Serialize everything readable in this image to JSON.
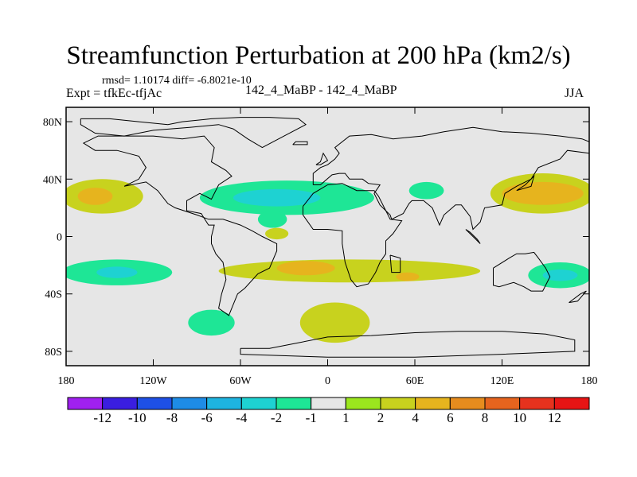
{
  "chart_data": {
    "type": "heatmap",
    "title": "Streamfunction Perturbation at 200 hPa (km2/s)",
    "stats_text": "rmsd= 1.10174 diff= -6.8021e-10",
    "left_label": "Expt = tfkEc-tfjAc",
    "center_label": "142_4_MaBP - 142_4_MaBP",
    "right_label": "JJA",
    "x_ticks": [
      {
        "value": -180,
        "label": "180"
      },
      {
        "value": -120,
        "label": "120W"
      },
      {
        "value": -60,
        "label": "60W"
      },
      {
        "value": 0,
        "label": "0"
      },
      {
        "value": 60,
        "label": "60E"
      },
      {
        "value": 120,
        "label": "120E"
      },
      {
        "value": 180,
        "label": "180"
      }
    ],
    "y_ticks": [
      {
        "value": 80,
        "label": "80N"
      },
      {
        "value": 40,
        "label": "40N"
      },
      {
        "value": 0,
        "label": "0"
      },
      {
        "value": -40,
        "label": "40S"
      },
      {
        "value": -80,
        "label": "80S"
      }
    ],
    "xlim": [
      -180,
      180
    ],
    "ylim": [
      -90,
      90
    ],
    "colorbar": {
      "labels": [
        "-12",
        "-10",
        "-8",
        "-6",
        "-4",
        "-2",
        "-1",
        "1",
        "2",
        "4",
        "6",
        "8",
        "10",
        "12"
      ],
      "colors": [
        "#a020f0",
        "#3a1ee0",
        "#1e50e6",
        "#1e8ce6",
        "#1eb4e0",
        "#1ed2d2",
        "#1ee696",
        "#e6e6e6",
        "#9be61e",
        "#c8d21e",
        "#e6b41e",
        "#e68c1e",
        "#e6641e",
        "#e6321e",
        "#e61414"
      ]
    },
    "fields": [
      {
        "level": "2",
        "lon": -155,
        "lat": 28,
        "rx": 28,
        "ry": 12
      },
      {
        "level": "4",
        "lon": -160,
        "lat": 28,
        "rx": 12,
        "ry": 6
      },
      {
        "level": "-1",
        "lon": -28,
        "lat": 27,
        "rx": 60,
        "ry": 12
      },
      {
        "level": "-2",
        "lon": -35,
        "lat": 27,
        "rx": 30,
        "ry": 6
      },
      {
        "level": "-1",
        "lon": -38,
        "lat": 12,
        "rx": 10,
        "ry": 6
      },
      {
        "level": "2",
        "lon": -35,
        "lat": 2,
        "rx": 8,
        "ry": 4
      },
      {
        "level": "-1",
        "lon": 68,
        "lat": 32,
        "rx": 12,
        "ry": 6
      },
      {
        "level": "2",
        "lon": 148,
        "lat": 30,
        "rx": 36,
        "ry": 14
      },
      {
        "level": "4",
        "lon": 148,
        "lat": 30,
        "rx": 28,
        "ry": 8
      },
      {
        "level": "-1",
        "lon": -145,
        "lat": -25,
        "rx": 38,
        "ry": 9
      },
      {
        "level": "-2",
        "lon": -145,
        "lat": -25,
        "rx": 14,
        "ry": 4
      },
      {
        "level": "2",
        "lon": 15,
        "lat": -24,
        "rx": 90,
        "ry": 8
      },
      {
        "level": "4",
        "lon": -15,
        "lat": -22,
        "rx": 20,
        "ry": 5
      },
      {
        "level": "4",
        "lon": 55,
        "lat": -28,
        "rx": 8,
        "ry": 3
      },
      {
        "level": "-1",
        "lon": 160,
        "lat": -27,
        "rx": 22,
        "ry": 9
      },
      {
        "level": "-2",
        "lon": 160,
        "lat": -27,
        "rx": 12,
        "ry": 4
      },
      {
        "level": "-1",
        "lon": -80,
        "lat": -60,
        "rx": 16,
        "ry": 9
      },
      {
        "level": "2",
        "lon": 5,
        "lat": -60,
        "rx": 24,
        "ry": 14
      }
    ],
    "coastlines": [
      [
        [
          -170,
          82
        ],
        [
          -150,
          82
        ],
        [
          -130,
          80
        ],
        [
          -110,
          78
        ],
        [
          -100,
          80
        ],
        [
          -80,
          82
        ],
        [
          -60,
          83
        ],
        [
          -40,
          83
        ],
        [
          -20,
          82
        ],
        [
          -15,
          78
        ],
        [
          -30,
          70
        ],
        [
          -45,
          62
        ],
        [
          -55,
          68
        ],
        [
          -65,
          75
        ],
        [
          -75,
          78
        ],
        [
          -95,
          76
        ],
        [
          -120,
          74
        ],
        [
          -140,
          70
        ],
        [
          -160,
          72
        ],
        [
          -170,
          78
        ],
        [
          -170,
          82
        ]
      ],
      [
        [
          -140,
          35
        ],
        [
          -130,
          40
        ],
        [
          -125,
          48
        ],
        [
          -130,
          56
        ],
        [
          -145,
          60
        ],
        [
          -160,
          60
        ],
        [
          -168,
          65
        ],
        [
          -158,
          70
        ],
        [
          -140,
          70
        ],
        [
          -120,
          70
        ],
        [
          -100,
          68
        ],
        [
          -85,
          70
        ],
        [
          -78,
          62
        ],
        [
          -80,
          52
        ],
        [
          -70,
          46
        ],
        [
          -66,
          42
        ],
        [
          -75,
          36
        ],
        [
          -80,
          26
        ],
        [
          -88,
          30
        ],
        [
          -97,
          25
        ],
        [
          -97,
          18
        ],
        [
          -87,
          16
        ],
        [
          -82,
          8
        ],
        [
          -78,
          8
        ],
        [
          -80,
          0
        ],
        [
          -80,
          -5
        ],
        [
          -77,
          -12
        ],
        [
          -72,
          -18
        ],
        [
          -70,
          -30
        ],
        [
          -73,
          -40
        ],
        [
          -75,
          -50
        ],
        [
          -68,
          -55
        ],
        [
          -66,
          -50
        ],
        [
          -62,
          -40
        ],
        [
          -57,
          -36
        ],
        [
          -48,
          -26
        ],
        [
          -40,
          -22
        ],
        [
          -35,
          -10
        ],
        [
          -35,
          -5
        ],
        [
          -45,
          0
        ],
        [
          -52,
          4
        ],
        [
          -60,
          8
        ],
        [
          -72,
          12
        ],
        [
          -82,
          12
        ],
        [
          -90,
          15
        ],
        [
          -105,
          20
        ],
        [
          -110,
          23
        ],
        [
          -117,
          32
        ],
        [
          -125,
          38
        ],
        [
          -140,
          35
        ]
      ],
      [
        [
          -10,
          36
        ],
        [
          -10,
          44
        ],
        [
          -5,
          48
        ],
        [
          0,
          50
        ],
        [
          5,
          54
        ],
        [
          8,
          58
        ],
        [
          5,
          62
        ],
        [
          15,
          70
        ],
        [
          30,
          71
        ],
        [
          45,
          68
        ],
        [
          65,
          70
        ],
        [
          80,
          73
        ],
        [
          100,
          76
        ],
        [
          120,
          73
        ],
        [
          140,
          72
        ],
        [
          160,
          70
        ],
        [
          175,
          68
        ],
        [
          180,
          66
        ],
        [
          180,
          58
        ],
        [
          165,
          60
        ],
        [
          160,
          54
        ],
        [
          145,
          48
        ],
        [
          140,
          40
        ],
        [
          130,
          35
        ],
        [
          122,
          30
        ],
        [
          120,
          22
        ],
        [
          108,
          20
        ],
        [
          105,
          10
        ],
        [
          100,
          5
        ],
        [
          98,
          14
        ],
        [
          92,
          22
        ],
        [
          88,
          22
        ],
        [
          80,
          15
        ],
        [
          77,
          8
        ],
        [
          72,
          20
        ],
        [
          66,
          25
        ],
        [
          58,
          25
        ],
        [
          56,
          23
        ],
        [
          52,
          16
        ],
        [
          44,
          12
        ],
        [
          43,
          15
        ],
        [
          36,
          22
        ],
        [
          32,
          30
        ],
        [
          36,
          36
        ],
        [
          28,
          37
        ],
        [
          24,
          40
        ],
        [
          15,
          40
        ],
        [
          12,
          44
        ],
        [
          8,
          44
        ],
        [
          3,
          43
        ],
        [
          -5,
          36
        ],
        [
          -10,
          36
        ]
      ],
      [
        [
          -17,
          21
        ],
        [
          -17,
          15
        ],
        [
          -10,
          5
        ],
        [
          0,
          5
        ],
        [
          10,
          4
        ],
        [
          10,
          -5
        ],
        [
          12,
          -18
        ],
        [
          16,
          -30
        ],
        [
          20,
          -35
        ],
        [
          28,
          -33
        ],
        [
          33,
          -25
        ],
        [
          36,
          -18
        ],
        [
          40,
          -12
        ],
        [
          40,
          -3
        ],
        [
          45,
          2
        ],
        [
          51,
          11
        ],
        [
          43,
          12
        ],
        [
          35,
          28
        ],
        [
          32,
          32
        ],
        [
          20,
          32
        ],
        [
          10,
          37
        ],
        [
          0,
          36
        ],
        [
          -10,
          30
        ],
        [
          -17,
          21
        ]
      ],
      [
        [
          114,
          -22
        ],
        [
          114,
          -34
        ],
        [
          118,
          -35
        ],
        [
          128,
          -32
        ],
        [
          135,
          -35
        ],
        [
          140,
          -38
        ],
        [
          148,
          -38
        ],
        [
          153,
          -28
        ],
        [
          150,
          -22
        ],
        [
          145,
          -15
        ],
        [
          142,
          -11
        ],
        [
          136,
          -12
        ],
        [
          130,
          -12
        ],
        [
          125,
          -15
        ],
        [
          114,
          -22
        ]
      ],
      [
        [
          -60,
          -78
        ],
        [
          -40,
          -78
        ],
        [
          -20,
          -74
        ],
        [
          0,
          -70
        ],
        [
          30,
          -69
        ],
        [
          60,
          -67
        ],
        [
          90,
          -66
        ],
        [
          120,
          -66
        ],
        [
          150,
          -68
        ],
        [
          170,
          -72
        ],
        [
          170,
          -80
        ],
        [
          120,
          -82
        ],
        [
          60,
          -84
        ],
        [
          0,
          -84
        ],
        [
          -60,
          -82
        ],
        [
          -60,
          -78
        ]
      ],
      [
        [
          -8,
          50
        ],
        [
          -5,
          52
        ],
        [
          -3,
          58
        ],
        [
          0,
          53
        ],
        [
          -5,
          50
        ],
        [
          -8,
          50
        ]
      ],
      [
        [
          -24,
          64
        ],
        [
          -14,
          64
        ],
        [
          -14,
          66
        ],
        [
          -22,
          66
        ],
        [
          -24,
          64
        ]
      ],
      [
        [
          43,
          -13
        ],
        [
          50,
          -15
        ],
        [
          50,
          -25
        ],
        [
          44,
          -25
        ],
        [
          43,
          -13
        ]
      ],
      [
        [
          95,
          5
        ],
        [
          105,
          -5
        ],
        [
          103,
          -2
        ],
        [
          98,
          3
        ],
        [
          95,
          5
        ]
      ],
      [
        [
          130,
          32
        ],
        [
          140,
          35
        ],
        [
          142,
          42
        ],
        [
          136,
          36
        ],
        [
          130,
          32
        ]
      ],
      [
        [
          166,
          -46
        ],
        [
          174,
          -40
        ],
        [
          178,
          -38
        ],
        [
          172,
          -45
        ],
        [
          166,
          -46
        ]
      ]
    ]
  }
}
